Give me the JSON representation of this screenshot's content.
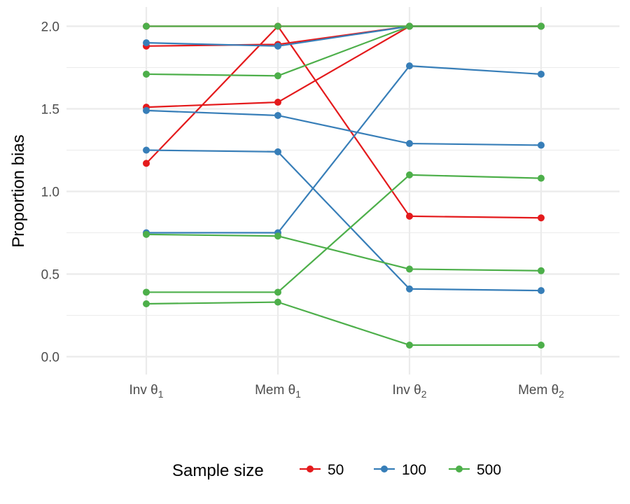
{
  "chart_data": {
    "type": "line",
    "title": "",
    "xlabel": "",
    "ylabel": "Proportion bias",
    "categories": [
      {
        "base": "Inv θ",
        "sub": "1"
      },
      {
        "base": "Mem θ",
        "sub": "1"
      },
      {
        "base": "Inv θ",
        "sub": "2"
      },
      {
        "base": "Mem θ",
        "sub": "2"
      }
    ],
    "yticks": [
      "0.0",
      "0.5",
      "1.0",
      "1.5",
      "2.0"
    ],
    "ylim": [
      -0.12,
      2.12
    ],
    "grid": true,
    "legend": {
      "title": "Sample size",
      "position": "bottom",
      "entries": [
        {
          "label": "50",
          "color": "#E41A1C"
        },
        {
          "label": "100",
          "color": "#377EB8"
        },
        {
          "label": "500",
          "color": "#4DAF4A"
        }
      ]
    },
    "series": [
      {
        "group": "50",
        "color": "#E41A1C",
        "values": [
          1.88,
          1.89,
          2.0,
          2.0
        ]
      },
      {
        "group": "50",
        "color": "#E41A1C",
        "values": [
          1.51,
          1.54,
          2.0,
          2.0
        ]
      },
      {
        "group": "50",
        "color": "#E41A1C",
        "values": [
          1.17,
          2.0,
          2.0,
          2.0
        ]
      },
      {
        "group": "50",
        "color": "#E41A1C",
        "values": [
          2.0,
          2.0,
          0.85,
          0.84
        ]
      },
      {
        "group": "100",
        "color": "#377EB8",
        "values": [
          1.9,
          1.88,
          2.0,
          2.0
        ]
      },
      {
        "group": "100",
        "color": "#377EB8",
        "values": [
          1.49,
          1.46,
          1.29,
          1.28
        ]
      },
      {
        "group": "100",
        "color": "#377EB8",
        "values": [
          1.25,
          1.24,
          0.41,
          0.4
        ]
      },
      {
        "group": "100",
        "color": "#377EB8",
        "values": [
          0.75,
          0.75,
          1.76,
          1.71
        ]
      },
      {
        "group": "500",
        "color": "#4DAF4A",
        "values": [
          2.0,
          2.0,
          2.0,
          2.0
        ]
      },
      {
        "group": "500",
        "color": "#4DAF4A",
        "values": [
          1.71,
          1.7,
          2.0,
          2.0
        ]
      },
      {
        "group": "500",
        "color": "#4DAF4A",
        "values": [
          0.74,
          0.73,
          0.53,
          0.52
        ]
      },
      {
        "group": "500",
        "color": "#4DAF4A",
        "values": [
          0.39,
          0.39,
          1.1,
          1.08
        ]
      },
      {
        "group": "500",
        "color": "#4DAF4A",
        "values": [
          0.32,
          0.33,
          0.07,
          0.07
        ]
      }
    ]
  }
}
